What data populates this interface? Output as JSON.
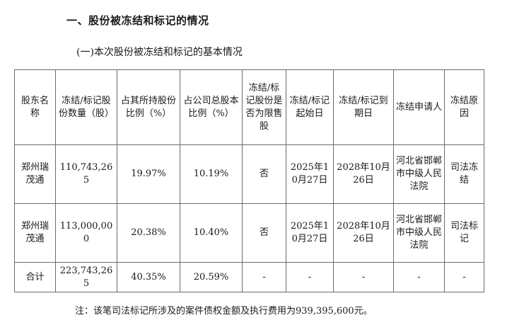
{
  "section_title": "一、股份被冻结和标记的情况",
  "subsection_title": "(一)本次股份被冻结和标记的基本情况",
  "table": {
    "headers": [
      "股东名称",
      "冻结/标记股份数量（股）",
      "占其所持股份比例（%）",
      "占公司总股本比例（%）",
      "冻结/标记股份是否为限售股",
      "冻结/标记起始日",
      "冻结/标记到期日",
      "冻结申请人",
      "冻结原因"
    ],
    "rows": [
      {
        "shareholder": "郑州瑞茂通",
        "shares": "110,743,265",
        "pct_holding": "19.97%",
        "pct_total": "10.19%",
        "restricted": "否",
        "start_date": "2025年10月27日",
        "end_date": "2028年10月26日",
        "applicant": "河北省邯郸市中级人民法院",
        "reason": "司法冻结"
      },
      {
        "shareholder": "郑州瑞茂通",
        "shares": "113,000,000",
        "pct_holding": "20.38%",
        "pct_total": "10.40%",
        "restricted": "否",
        "start_date": "2025年10月27日",
        "end_date": "2028年10月26日",
        "applicant": "河北省邯郸市中级人民法院",
        "reason": "司法标记"
      }
    ],
    "total": {
      "label": "合计",
      "shares": "223,743,265",
      "pct_holding": "40.35%",
      "pct_total": "20.59%",
      "restricted": "-",
      "start_date": "-",
      "end_date": "-",
      "applicant": "-",
      "reason": "-"
    }
  },
  "note": "注：该笔司法标记所涉及的案件债权金额及执行费用为939,395,600元。"
}
